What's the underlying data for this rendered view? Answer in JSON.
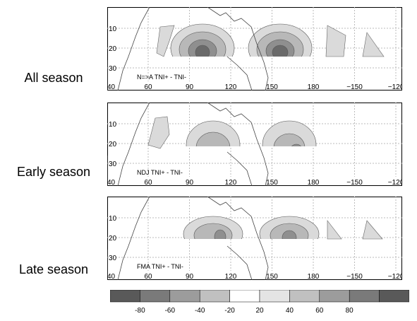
{
  "panels": [
    {
      "row_label": "All season",
      "annotation": "N=>A TNI+ - TNI-"
    },
    {
      "row_label": "Early season",
      "annotation": "NDJ TNI+ - TNI-"
    },
    {
      "row_label": "Late season",
      "annotation": "FMA TNI+ - TNI-"
    }
  ],
  "lat_ticks": [
    "10",
    "20",
    "30"
  ],
  "lon_ticks": [
    "60",
    "90",
    "120",
    "150",
    "180",
    "−150",
    "−120"
  ],
  "edge_tick": "40",
  "colorbar": {
    "levels": [
      -80,
      -60,
      -40,
      -20,
      20,
      40,
      60,
      80
    ],
    "labels": [
      "-80",
      "-60",
      "-40",
      "-20",
      "20",
      "40",
      "60",
      "80"
    ],
    "colors": [
      "#595959",
      "#7a7a7a",
      "#9c9c9c",
      "#c0c0c0",
      "#ffffff",
      "#e4e4e4",
      "#c0c0c0",
      "#9c9c9c",
      "#7a7a7a",
      "#595959"
    ]
  }
}
